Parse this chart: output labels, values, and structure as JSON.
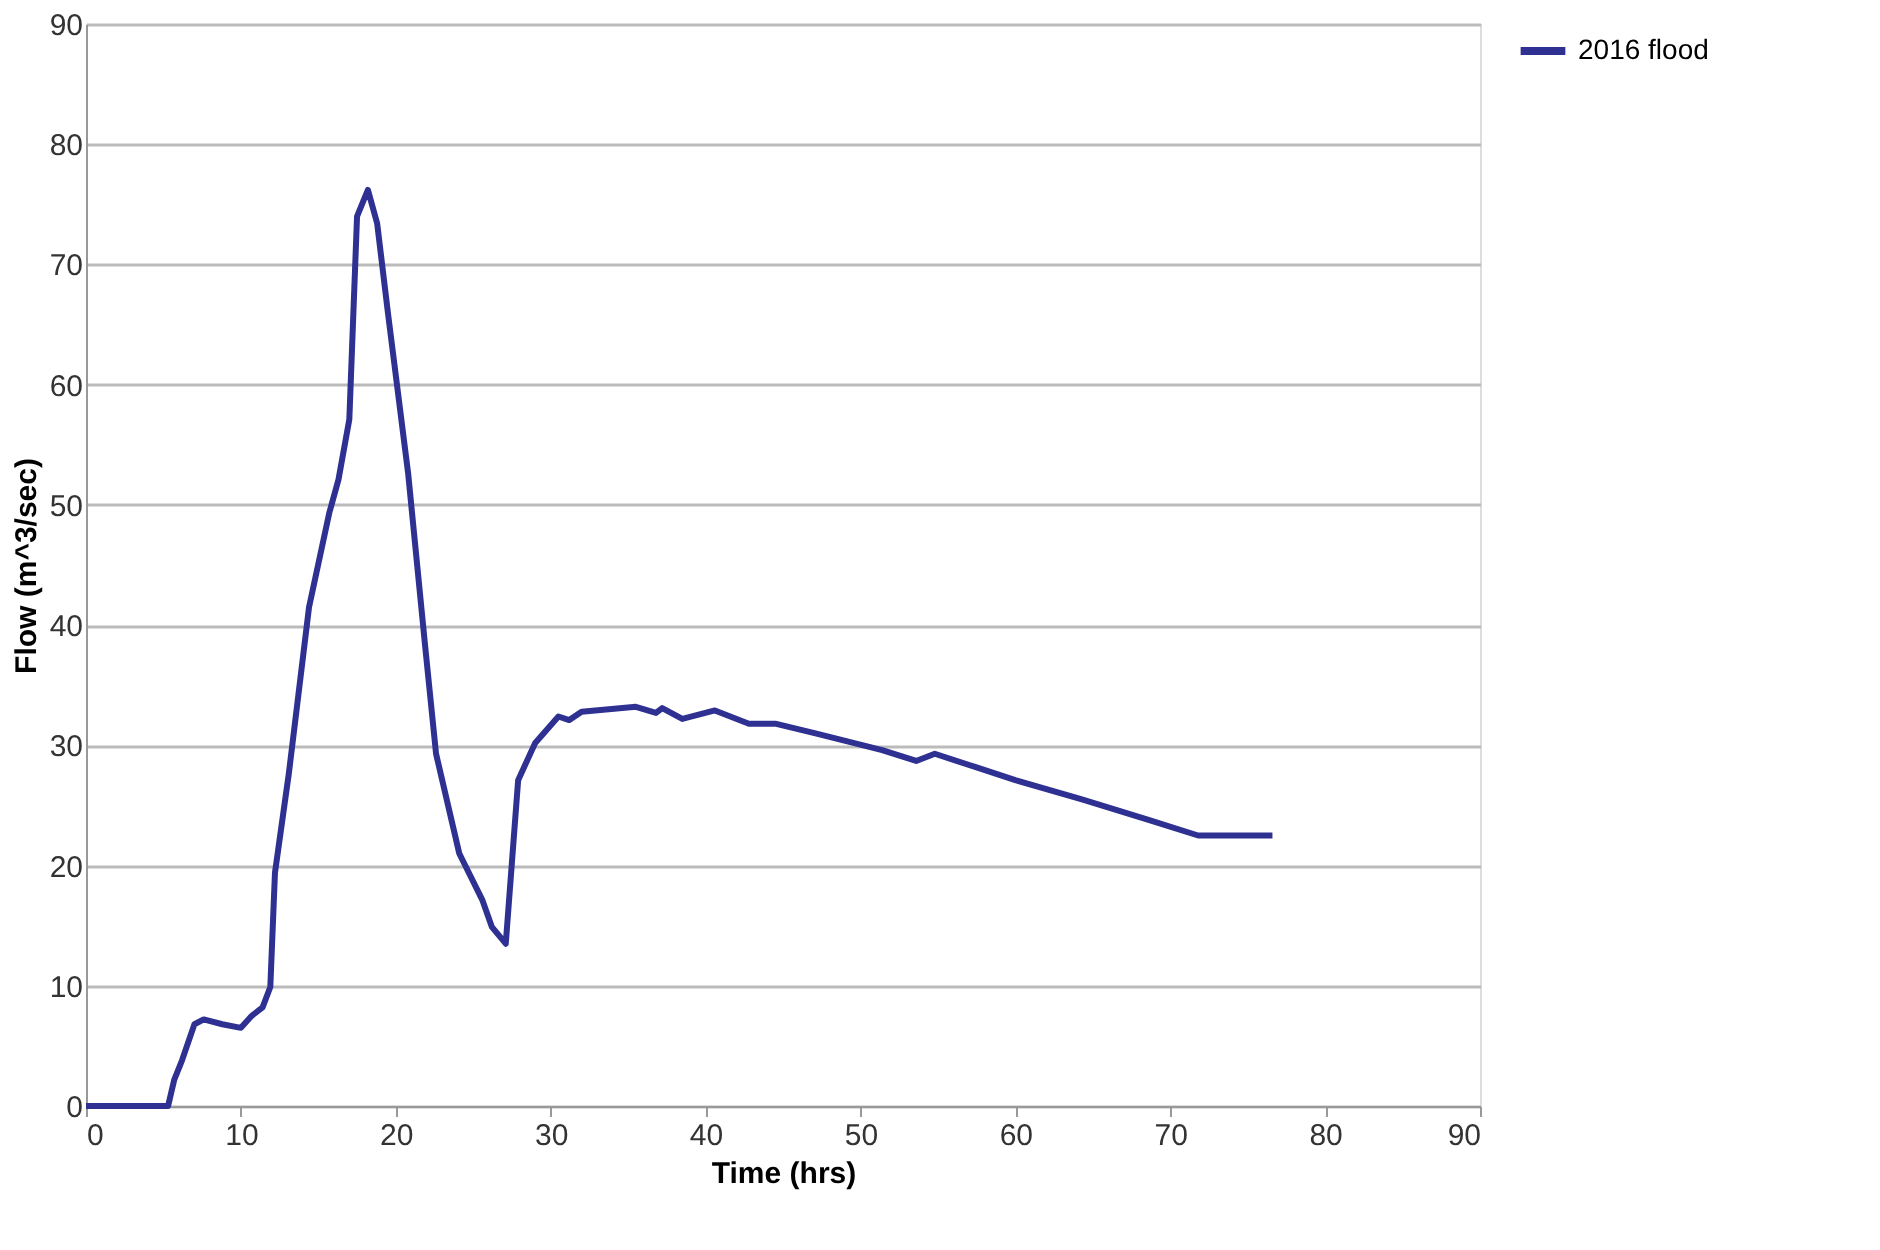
{
  "chart_data": {
    "type": "line",
    "xlabel": "Time (hrs)",
    "ylabel": "Flow (m^3/sec)",
    "xlim": [
      0,
      90
    ],
    "xticks": [
      0,
      10,
      20,
      30,
      40,
      50,
      60,
      70,
      80,
      90
    ],
    "ylim": [
      0,
      90
    ],
    "yticks": [
      0,
      10,
      20,
      30,
      40,
      50,
      60,
      70,
      80,
      90
    ],
    "grid": "y",
    "legend": "right",
    "marker": "none",
    "line_style": "solid",
    "series": [
      {
        "name": "2016 flood",
        "color": "#2e3192",
        "x": [
          0,
          5.3,
          5.7,
          6.2,
          7,
          7.6,
          8.8,
          10,
          10.7,
          11.4,
          11.9,
          12.2,
          13.1,
          14.4,
          15.7,
          16.3,
          17.0,
          17.5,
          18.2,
          18.8,
          19.5,
          20.8,
          21.9,
          22.6,
          24.1,
          25.6,
          26.2,
          27.1,
          27.9,
          29.0,
          30.5,
          31.2,
          32.0,
          35.5,
          36.8,
          37.2,
          38.5,
          40.6,
          42.8,
          44.5,
          47.1,
          51.4,
          53.6,
          54.8,
          57.4,
          60.0,
          64.3,
          68.6,
          71.8,
          76.6
        ],
        "values": [
          0,
          0,
          2.2,
          3.8,
          6.8,
          7.2,
          6.8,
          6.5,
          7.5,
          8.2,
          9.9,
          19.4,
          27.7,
          41.5,
          49.3,
          52.1,
          57.1,
          74.0,
          76.2,
          73.4,
          65.9,
          52.6,
          38.2,
          29.3,
          21.0,
          17.1,
          14.9,
          13.5,
          27.1,
          30.2,
          32.4,
          32.1,
          32.8,
          33.2,
          32.7,
          33.1,
          32.2,
          32.9,
          31.8,
          31.8,
          31.0,
          29.6,
          28.7,
          29.3,
          28.2,
          27.1,
          25.5,
          23.8,
          22.5,
          22.5
        ]
      }
    ]
  }
}
